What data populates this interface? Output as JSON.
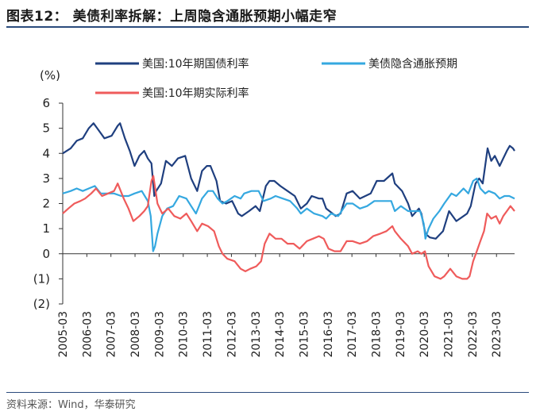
{
  "header": {
    "title": "图表12： 美债利率拆解：上周隐含通胀预期小幅走窄"
  },
  "footer": {
    "source": "资料来源：Wind，华泰研究"
  },
  "colors": {
    "accent_rule": "#2a4b7c"
  },
  "chart_data": {
    "type": "line",
    "y_unit_label": "(%)",
    "ylim": [
      -2,
      6
    ],
    "yticks": [
      6,
      5,
      4,
      3,
      2,
      1,
      0,
      -1,
      -2
    ],
    "ytick_labels": [
      "6",
      "5",
      "4",
      "3",
      "2",
      "1",
      "0",
      "(1)",
      "(2)"
    ],
    "xlim": [
      2005.17,
      2023.92
    ],
    "xticks": [
      2005.17,
      2006.17,
      2007.17,
      2008.17,
      2009.17,
      2010.17,
      2011.17,
      2012.17,
      2013.17,
      2014.17,
      2015.17,
      2016.17,
      2017.17,
      2018.17,
      2019.17,
      2020.17,
      2021.17,
      2022.17,
      2023.17
    ],
    "xtick_labels": [
      "2005-03",
      "2006-03",
      "2007-03",
      "2008-03",
      "2009-03",
      "2010-03",
      "2011-03",
      "2012-03",
      "2013-03",
      "2014-03",
      "2015-03",
      "2016-03",
      "2017-03",
      "2018-03",
      "2019-03",
      "2020-03",
      "2021-03",
      "2022-03",
      "2023-03"
    ],
    "grid": false,
    "legend_position": "top",
    "series": [
      {
        "name": "美国:10年期国债利率",
        "color": "#1f3f7f",
        "points": [
          [
            2005.17,
            4.0
          ],
          [
            2005.5,
            4.2
          ],
          [
            2005.75,
            4.5
          ],
          [
            2006.0,
            4.6
          ],
          [
            2006.25,
            5.0
          ],
          [
            2006.45,
            5.2
          ],
          [
            2006.6,
            5.0
          ],
          [
            2006.9,
            4.6
          ],
          [
            2007.2,
            4.7
          ],
          [
            2007.45,
            5.1
          ],
          [
            2007.55,
            5.2
          ],
          [
            2007.75,
            4.6
          ],
          [
            2007.95,
            4.1
          ],
          [
            2008.15,
            3.5
          ],
          [
            2008.35,
            3.9
          ],
          [
            2008.55,
            4.1
          ],
          [
            2008.7,
            3.8
          ],
          [
            2008.85,
            3.6
          ],
          [
            2008.97,
            2.3
          ],
          [
            2009.05,
            2.5
          ],
          [
            2009.25,
            2.8
          ],
          [
            2009.45,
            3.7
          ],
          [
            2009.7,
            3.5
          ],
          [
            2009.95,
            3.8
          ],
          [
            2010.25,
            3.9
          ],
          [
            2010.5,
            3.0
          ],
          [
            2010.75,
            2.5
          ],
          [
            2010.95,
            3.3
          ],
          [
            2011.15,
            3.5
          ],
          [
            2011.3,
            3.5
          ],
          [
            2011.55,
            2.9
          ],
          [
            2011.7,
            2.1
          ],
          [
            2011.95,
            2.0
          ],
          [
            2012.2,
            2.1
          ],
          [
            2012.45,
            1.6
          ],
          [
            2012.6,
            1.5
          ],
          [
            2012.9,
            1.7
          ],
          [
            2013.17,
            1.9
          ],
          [
            2013.35,
            1.7
          ],
          [
            2013.6,
            2.7
          ],
          [
            2013.75,
            2.9
          ],
          [
            2013.95,
            2.9
          ],
          [
            2014.2,
            2.7
          ],
          [
            2014.5,
            2.5
          ],
          [
            2014.8,
            2.3
          ],
          [
            2015.05,
            1.8
          ],
          [
            2015.3,
            2.0
          ],
          [
            2015.5,
            2.3
          ],
          [
            2015.8,
            2.2
          ],
          [
            2015.95,
            2.2
          ],
          [
            2016.1,
            1.8
          ],
          [
            2016.5,
            1.5
          ],
          [
            2016.7,
            1.6
          ],
          [
            2016.95,
            2.4
          ],
          [
            2017.2,
            2.5
          ],
          [
            2017.5,
            2.2
          ],
          [
            2017.95,
            2.4
          ],
          [
            2018.2,
            2.9
          ],
          [
            2018.5,
            2.9
          ],
          [
            2018.85,
            3.2
          ],
          [
            2018.95,
            2.8
          ],
          [
            2019.25,
            2.5
          ],
          [
            2019.5,
            2.0
          ],
          [
            2019.67,
            1.5
          ],
          [
            2019.95,
            1.8
          ],
          [
            2020.05,
            1.6
          ],
          [
            2020.22,
            0.8
          ],
          [
            2020.4,
            0.65
          ],
          [
            2020.65,
            0.6
          ],
          [
            2020.95,
            0.9
          ],
          [
            2021.2,
            1.7
          ],
          [
            2021.5,
            1.3
          ],
          [
            2021.8,
            1.5
          ],
          [
            2021.95,
            1.6
          ],
          [
            2022.1,
            1.9
          ],
          [
            2022.3,
            2.8
          ],
          [
            2022.45,
            3.0
          ],
          [
            2022.6,
            2.8
          ],
          [
            2022.8,
            4.2
          ],
          [
            2022.95,
            3.7
          ],
          [
            2023.1,
            3.9
          ],
          [
            2023.3,
            3.5
          ],
          [
            2023.45,
            3.8
          ],
          [
            2023.6,
            4.1
          ],
          [
            2023.72,
            4.3
          ],
          [
            2023.85,
            4.2
          ],
          [
            2023.92,
            4.1
          ]
        ]
      },
      {
        "name": "美债隐含通胀预期",
        "color": "#35a8e0",
        "points": [
          [
            2005.17,
            2.4
          ],
          [
            2005.5,
            2.5
          ],
          [
            2005.75,
            2.6
          ],
          [
            2006.0,
            2.5
          ],
          [
            2006.25,
            2.6
          ],
          [
            2006.5,
            2.7
          ],
          [
            2006.75,
            2.4
          ],
          [
            2007.0,
            2.4
          ],
          [
            2007.3,
            2.4
          ],
          [
            2007.6,
            2.3
          ],
          [
            2007.9,
            2.3
          ],
          [
            2008.15,
            2.4
          ],
          [
            2008.45,
            2.5
          ],
          [
            2008.7,
            2.1
          ],
          [
            2008.82,
            1.5
          ],
          [
            2008.92,
            0.1
          ],
          [
            2009.0,
            0.3
          ],
          [
            2009.1,
            0.8
          ],
          [
            2009.3,
            1.5
          ],
          [
            2009.5,
            1.8
          ],
          [
            2009.75,
            1.9
          ],
          [
            2010.0,
            2.3
          ],
          [
            2010.3,
            2.2
          ],
          [
            2010.5,
            1.9
          ],
          [
            2010.7,
            1.6
          ],
          [
            2010.95,
            2.2
          ],
          [
            2011.2,
            2.5
          ],
          [
            2011.4,
            2.5
          ],
          [
            2011.6,
            2.2
          ],
          [
            2011.8,
            2.0
          ],
          [
            2012.0,
            2.1
          ],
          [
            2012.3,
            2.3
          ],
          [
            2012.55,
            2.2
          ],
          [
            2012.7,
            2.4
          ],
          [
            2013.0,
            2.5
          ],
          [
            2013.3,
            2.5
          ],
          [
            2013.5,
            2.1
          ],
          [
            2013.8,
            2.2
          ],
          [
            2014.0,
            2.3
          ],
          [
            2014.3,
            2.2
          ],
          [
            2014.6,
            2.1
          ],
          [
            2014.9,
            1.8
          ],
          [
            2015.05,
            1.6
          ],
          [
            2015.3,
            1.8
          ],
          [
            2015.6,
            1.6
          ],
          [
            2015.95,
            1.5
          ],
          [
            2016.1,
            1.4
          ],
          [
            2016.3,
            1.6
          ],
          [
            2016.6,
            1.5
          ],
          [
            2016.95,
            2.0
          ],
          [
            2017.2,
            2.0
          ],
          [
            2017.5,
            1.8
          ],
          [
            2017.8,
            1.9
          ],
          [
            2018.1,
            2.1
          ],
          [
            2018.4,
            2.1
          ],
          [
            2018.8,
            2.1
          ],
          [
            2018.95,
            1.7
          ],
          [
            2019.2,
            1.9
          ],
          [
            2019.5,
            1.7
          ],
          [
            2019.8,
            1.7
          ],
          [
            2020.0,
            1.7
          ],
          [
            2020.15,
            1.2
          ],
          [
            2020.22,
            0.6
          ],
          [
            2020.35,
            1.0
          ],
          [
            2020.55,
            1.4
          ],
          [
            2020.8,
            1.7
          ],
          [
            2021.0,
            2.0
          ],
          [
            2021.3,
            2.4
          ],
          [
            2021.5,
            2.3
          ],
          [
            2021.8,
            2.6
          ],
          [
            2022.0,
            2.4
          ],
          [
            2022.2,
            2.9
          ],
          [
            2022.35,
            3.0
          ],
          [
            2022.5,
            2.6
          ],
          [
            2022.7,
            2.4
          ],
          [
            2022.85,
            2.5
          ],
          [
            2023.1,
            2.4
          ],
          [
            2023.3,
            2.2
          ],
          [
            2023.5,
            2.3
          ],
          [
            2023.7,
            2.3
          ],
          [
            2023.92,
            2.2
          ]
        ]
      },
      {
        "name": "美国:10年期实际利率",
        "color": "#ef5b5b",
        "points": [
          [
            2005.17,
            1.6
          ],
          [
            2005.4,
            1.8
          ],
          [
            2005.65,
            2.0
          ],
          [
            2005.9,
            2.1
          ],
          [
            2006.1,
            2.2
          ],
          [
            2006.35,
            2.4
          ],
          [
            2006.55,
            2.6
          ],
          [
            2006.8,
            2.3
          ],
          [
            2007.05,
            2.4
          ],
          [
            2007.3,
            2.5
          ],
          [
            2007.45,
            2.8
          ],
          [
            2007.7,
            2.2
          ],
          [
            2007.9,
            1.8
          ],
          [
            2008.1,
            1.3
          ],
          [
            2008.35,
            1.5
          ],
          [
            2008.55,
            1.7
          ],
          [
            2008.7,
            1.9
          ],
          [
            2008.85,
            2.9
          ],
          [
            2008.93,
            3.1
          ],
          [
            2009.1,
            2.0
          ],
          [
            2009.3,
            1.6
          ],
          [
            2009.55,
            1.8
          ],
          [
            2009.8,
            1.5
          ],
          [
            2010.05,
            1.4
          ],
          [
            2010.3,
            1.6
          ],
          [
            2010.5,
            1.3
          ],
          [
            2010.75,
            0.9
          ],
          [
            2010.95,
            1.2
          ],
          [
            2011.2,
            1.1
          ],
          [
            2011.45,
            0.9
          ],
          [
            2011.65,
            0.3
          ],
          [
            2011.8,
            0.0
          ],
          [
            2012.0,
            -0.2
          ],
          [
            2012.3,
            -0.3
          ],
          [
            2012.55,
            -0.6
          ],
          [
            2012.75,
            -0.7
          ],
          [
            2012.95,
            -0.6
          ],
          [
            2013.2,
            -0.5
          ],
          [
            2013.4,
            -0.3
          ],
          [
            2013.55,
            0.4
          ],
          [
            2013.75,
            0.8
          ],
          [
            2014.0,
            0.6
          ],
          [
            2014.25,
            0.6
          ],
          [
            2014.5,
            0.4
          ],
          [
            2014.75,
            0.4
          ],
          [
            2015.0,
            0.2
          ],
          [
            2015.3,
            0.5
          ],
          [
            2015.55,
            0.6
          ],
          [
            2015.8,
            0.7
          ],
          [
            2016.0,
            0.6
          ],
          [
            2016.2,
            0.2
          ],
          [
            2016.45,
            0.1
          ],
          [
            2016.7,
            0.1
          ],
          [
            2016.95,
            0.5
          ],
          [
            2017.2,
            0.5
          ],
          [
            2017.5,
            0.4
          ],
          [
            2017.8,
            0.5
          ],
          [
            2018.05,
            0.7
          ],
          [
            2018.35,
            0.8
          ],
          [
            2018.6,
            0.9
          ],
          [
            2018.85,
            1.1
          ],
          [
            2018.95,
            0.9
          ],
          [
            2019.2,
            0.6
          ],
          [
            2019.5,
            0.3
          ],
          [
            2019.67,
            0.0
          ],
          [
            2019.9,
            0.1
          ],
          [
            2020.05,
            0.0
          ],
          [
            2020.2,
            0.1
          ],
          [
            2020.35,
            -0.5
          ],
          [
            2020.6,
            -0.9
          ],
          [
            2020.85,
            -1.0
          ],
          [
            2021.0,
            -0.9
          ],
          [
            2021.25,
            -0.6
          ],
          [
            2021.5,
            -0.9
          ],
          [
            2021.75,
            -1.0
          ],
          [
            2021.95,
            -1.0
          ],
          [
            2022.05,
            -0.9
          ],
          [
            2022.2,
            -0.3
          ],
          [
            2022.35,
            0.1
          ],
          [
            2022.5,
            0.5
          ],
          [
            2022.65,
            0.9
          ],
          [
            2022.78,
            1.6
          ],
          [
            2022.95,
            1.4
          ],
          [
            2023.15,
            1.5
          ],
          [
            2023.3,
            1.2
          ],
          [
            2023.45,
            1.5
          ],
          [
            2023.6,
            1.7
          ],
          [
            2023.75,
            1.9
          ],
          [
            2023.92,
            1.7
          ]
        ]
      }
    ]
  }
}
